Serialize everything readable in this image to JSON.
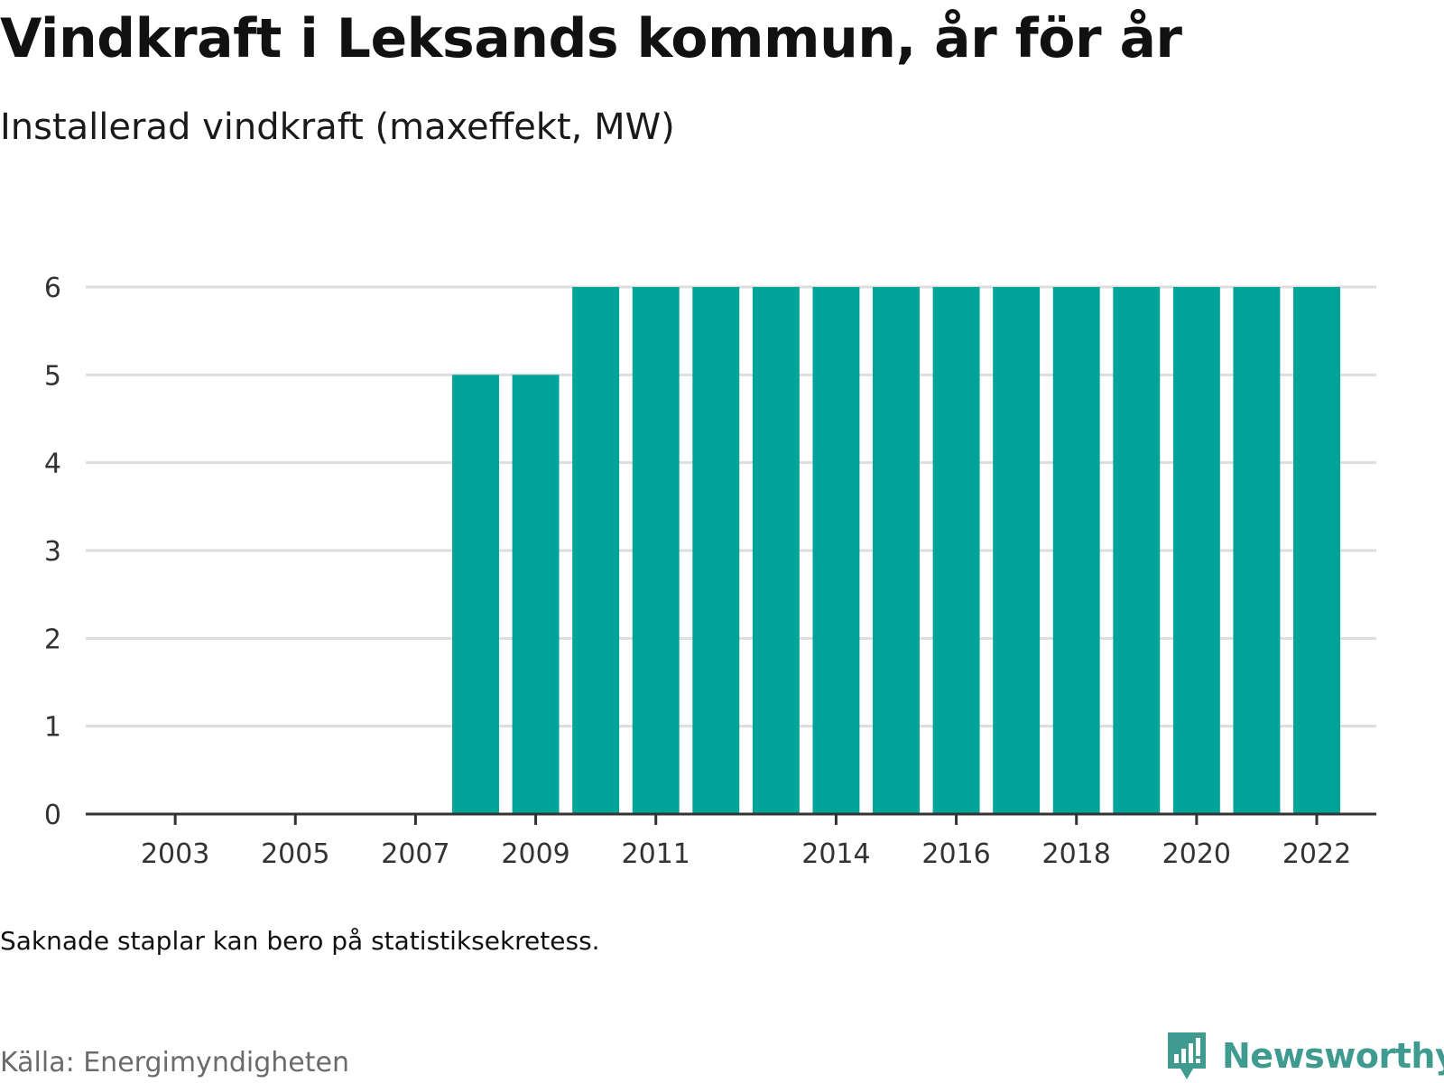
{
  "title": "Vindkraft i Leksands kommun, år för år",
  "subtitle": "Installerad vindkraft (maxeffekt, MW)",
  "note": "Saknade staplar kan bero på statistiksekretess.",
  "source": "Källa: Energimyndigheten",
  "brand": {
    "name": "Newsworthy",
    "color": "#3f9a8f",
    "icon": "newsworthy-logo-icon"
  },
  "chart_data": {
    "type": "bar",
    "color": "#00a499",
    "grid": true,
    "ylim": [
      0,
      6
    ],
    "yticks": [
      "0",
      "1",
      "2",
      "3",
      "4",
      "5",
      "6"
    ],
    "xticks": [
      "2003",
      "2005",
      "2007",
      "2009",
      "2011",
      "2014",
      "2016",
      "2018",
      "2020",
      "2022"
    ],
    "categories": [
      "2002",
      "2003",
      "2004",
      "2005",
      "2006",
      "2007",
      "2008",
      "2009",
      "2010",
      "2011",
      "2012",
      "2013",
      "2014",
      "2015",
      "2016",
      "2017",
      "2018",
      "2019",
      "2020",
      "2021",
      "2022"
    ],
    "values": [
      null,
      null,
      null,
      null,
      null,
      null,
      5,
      5,
      6,
      6,
      6,
      6,
      6,
      6,
      6,
      6,
      6,
      6,
      6,
      6,
      6
    ]
  }
}
